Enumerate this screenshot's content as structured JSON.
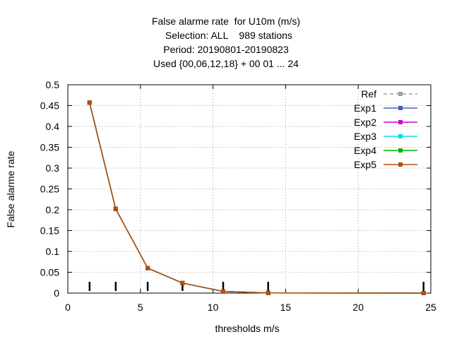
{
  "chart_data": {
    "type": "line",
    "title_lines": [
      "False alarme rate  for U10m (m/s)",
      "  Selection: ALL    989 stations",
      "Period: 20190801-20190823",
      "Used {00,06,12,18} + 00 01 ... 24"
    ],
    "xlabel": "thresholds m/s",
    "ylabel": "False alarme rate",
    "xlim": [
      0,
      25
    ],
    "ylim": [
      0,
      0.5
    ],
    "xticks": [
      "0",
      "5",
      "10",
      "15",
      "20",
      "25"
    ],
    "yticks": [
      "0",
      "0.05",
      "0.1",
      "0.15",
      "0.2",
      "0.25",
      "0.3",
      "0.35",
      "0.4",
      "0.45",
      "0.5"
    ],
    "grid": true,
    "legend_position": "top-right",
    "x": [
      1.5,
      3.3,
      5.5,
      7.9,
      10.7,
      13.8,
      24.5
    ],
    "threshold_markers_x": [
      1.5,
      3.3,
      5.5,
      7.9,
      10.7,
      13.8,
      24.5
    ],
    "series": [
      {
        "name": "Ref",
        "color": "#a0a0a0",
        "dashed": true,
        "values": [
          0.457,
          0.202,
          0.06,
          0.024,
          0.004,
          0.0005,
          0.0
        ]
      },
      {
        "name": "Exp1",
        "color": "#3b5fcf",
        "dashed": false,
        "values": [
          0.457,
          0.202,
          0.06,
          0.024,
          0.004,
          0.0005,
          0.0
        ]
      },
      {
        "name": "Exp2",
        "color": "#cc00cc",
        "dashed": false,
        "values": [
          0.457,
          0.202,
          0.06,
          0.024,
          0.004,
          0.0005,
          0.0
        ]
      },
      {
        "name": "Exp3",
        "color": "#00e0e0",
        "dashed": false,
        "values": [
          0.457,
          0.202,
          0.06,
          0.024,
          0.004,
          0.0005,
          0.0
        ]
      },
      {
        "name": "Exp4",
        "color": "#00b000",
        "dashed": false,
        "values": [
          0.457,
          0.202,
          0.06,
          0.024,
          0.004,
          0.0005,
          0.0
        ]
      },
      {
        "name": "Exp5",
        "color": "#b84a0e",
        "dashed": false,
        "values": [
          0.457,
          0.202,
          0.06,
          0.024,
          0.004,
          0.0005,
          0.0
        ]
      }
    ]
  }
}
